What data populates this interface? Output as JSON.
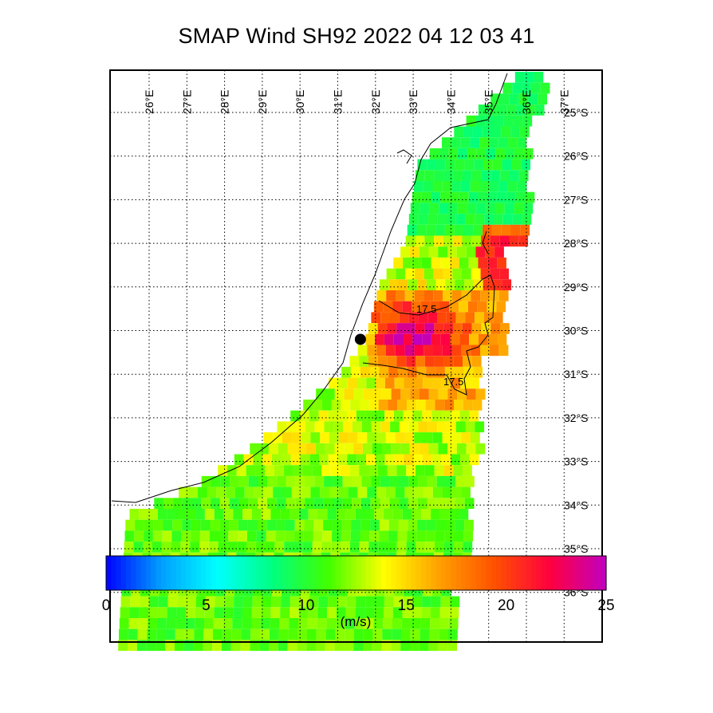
{
  "title": "SMAP Wind  SH92  2022 04 12 03 41",
  "map": {
    "lon_labels": [
      "26°E",
      "27°E",
      "28°E",
      "29°E",
      "30°E",
      "31°E",
      "32°E",
      "33°E",
      "34°E",
      "35°E",
      "36°E",
      "37°E"
    ],
    "lat_labels": [
      "25°S",
      "26°S",
      "27°S",
      "28°S",
      "29°S",
      "30°S",
      "31°S",
      "32°S",
      "33°S",
      "34°S",
      "35°S",
      "36°S"
    ],
    "lon_range": [
      25.0,
      37.5
    ],
    "lat_range": [
      -25.0,
      -37.0
    ],
    "storm_center": {
      "lon": 31.6,
      "lat": -30.2
    },
    "contour_labels": [
      "17.5",
      "17.5"
    ],
    "contour_level": 17.5,
    "grid": "dotted"
  },
  "colorbar": {
    "min": 0,
    "max": 25,
    "ticks": [
      "0",
      "5",
      "10",
      "15",
      "20",
      "25"
    ],
    "unit_label": "(m/s)",
    "colors": [
      "#0000ff",
      "#00a0ff",
      "#00ffff",
      "#00ff80",
      "#40ff00",
      "#ffff00",
      "#ffa000",
      "#ff5000",
      "#ff0040",
      "#c000c0"
    ]
  }
}
